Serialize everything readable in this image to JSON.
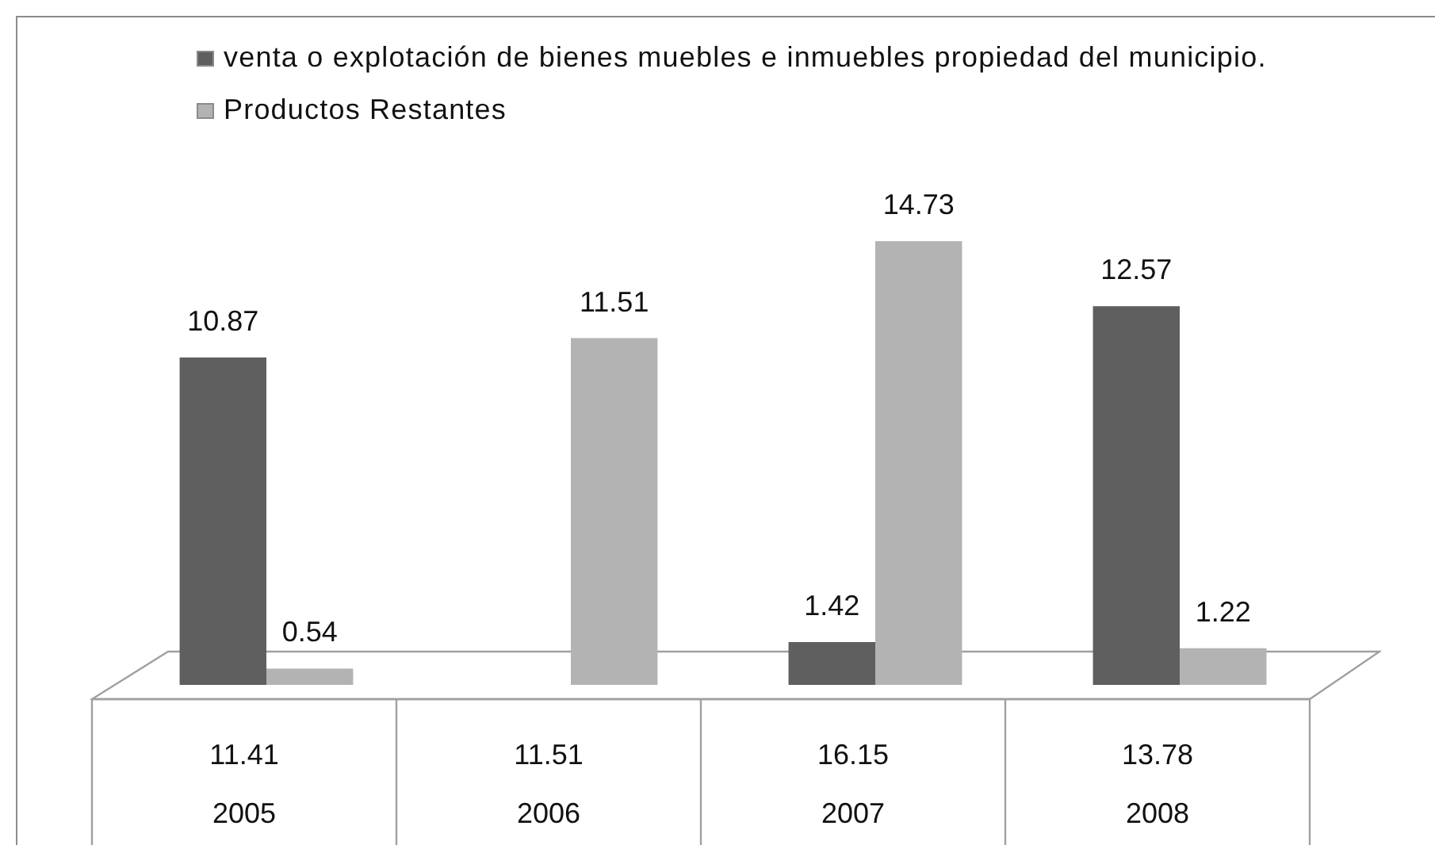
{
  "chart_data": {
    "type": "bar",
    "categories": [
      "2005",
      "2006",
      "2007",
      "2008"
    ],
    "series": [
      {
        "name": "venta o explotación de bienes muebles e inmuebles propiedad del municipio.",
        "color": "#5f5f5f",
        "values": [
          10.87,
          null,
          1.42,
          12.57
        ]
      },
      {
        "name": "Productos Restantes",
        "color": "#b3b3b3",
        "values": [
          0.54,
          11.51,
          14.73,
          1.22
        ]
      }
    ],
    "data_labels": true,
    "totals": [
      "11.41",
      "11.51",
      "16.15",
      "13.78"
    ],
    "legend": "top"
  }
}
